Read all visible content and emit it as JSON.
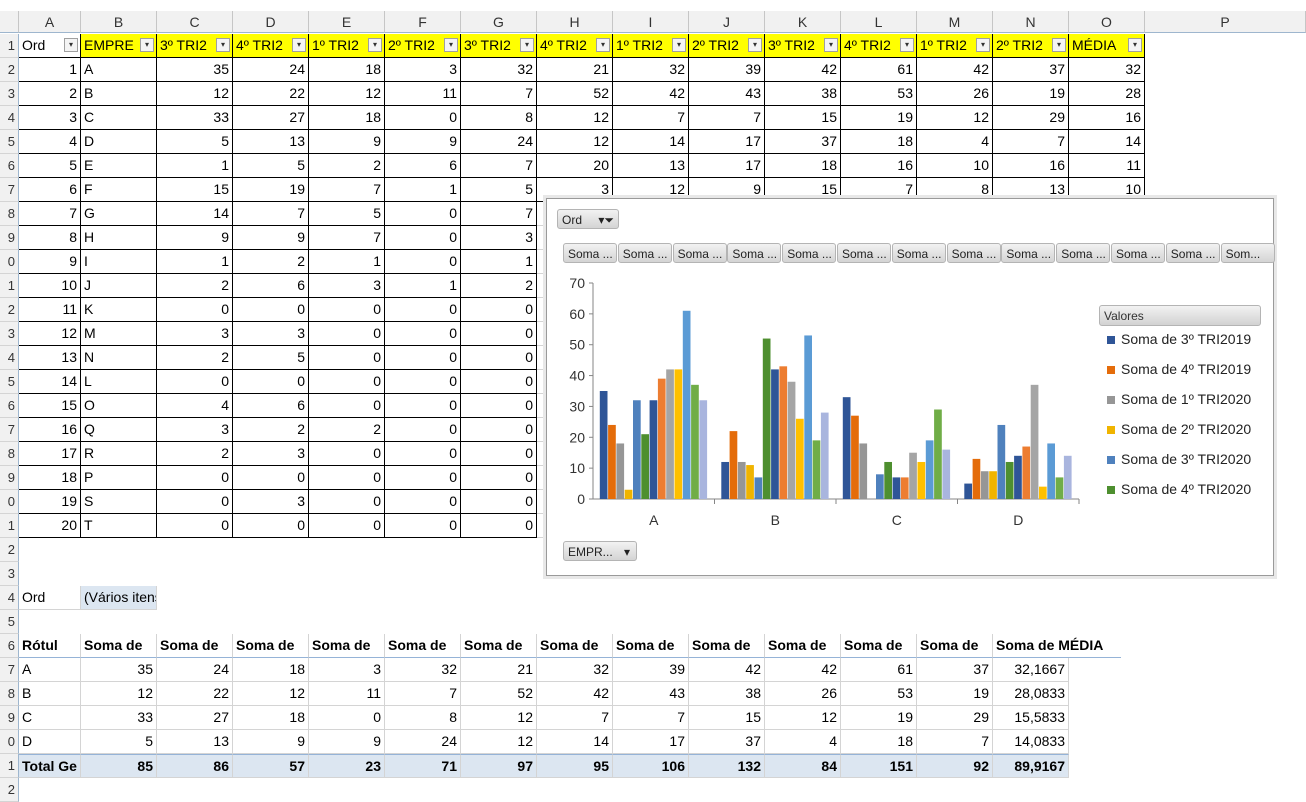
{
  "columns": [
    "A",
    "B",
    "C",
    "D",
    "E",
    "F",
    "G",
    "H",
    "I",
    "J",
    "K",
    "L",
    "M",
    "N",
    "O",
    "P"
  ],
  "row_numbers": [
    "1",
    "2",
    "3",
    "4",
    "5",
    "6",
    "7",
    "8",
    "9",
    "0",
    "1",
    "2",
    "3",
    "4",
    "5",
    "6",
    "7",
    "8",
    "9",
    "0",
    "1",
    "2",
    "3",
    "4",
    "5",
    "6",
    "7",
    "8",
    "9",
    "0",
    "1",
    "2"
  ],
  "table_headers": [
    "Ord",
    "EMPRE",
    "3º TRI2",
    "4º TRI2",
    "1º TRI2",
    "2º TRI2",
    "3º TRI2",
    "4º TRI2",
    "1º TRI2",
    "2º TRI2",
    "3º TRI2",
    "4º TRI2",
    "1º TRI2",
    "2º TRI2",
    "MÉDIA"
  ],
  "table_rows": [
    [
      "1",
      "A",
      "35",
      "24",
      "18",
      "3",
      "32",
      "21",
      "32",
      "39",
      "42",
      "61",
      "42",
      "37",
      "32"
    ],
    [
      "2",
      "B",
      "12",
      "22",
      "12",
      "11",
      "7",
      "52",
      "42",
      "43",
      "38",
      "53",
      "26",
      "19",
      "28"
    ],
    [
      "3",
      "C",
      "33",
      "27",
      "18",
      "0",
      "8",
      "12",
      "7",
      "7",
      "15",
      "19",
      "12",
      "29",
      "16"
    ],
    [
      "4",
      "D",
      "5",
      "13",
      "9",
      "9",
      "24",
      "12",
      "14",
      "17",
      "37",
      "18",
      "4",
      "7",
      "14"
    ],
    [
      "5",
      "E",
      "1",
      "5",
      "2",
      "6",
      "7",
      "20",
      "13",
      "17",
      "18",
      "16",
      "10",
      "16",
      "11"
    ],
    [
      "6",
      "F",
      "15",
      "19",
      "7",
      "1",
      "5",
      "3",
      "12",
      "9",
      "15",
      "7",
      "8",
      "13",
      "10"
    ],
    [
      "7",
      "G",
      "14",
      "7",
      "5",
      "0",
      "7",
      "",
      "",
      "",
      "",
      "",
      "",
      "",
      ""
    ],
    [
      "8",
      "H",
      "9",
      "9",
      "7",
      "0",
      "3",
      "",
      "",
      "",
      "",
      "",
      "",
      "",
      ""
    ],
    [
      "9",
      "I",
      "1",
      "2",
      "1",
      "0",
      "1",
      "",
      "",
      "",
      "",
      "",
      "",
      "",
      ""
    ],
    [
      "10",
      "J",
      "2",
      "6",
      "3",
      "1",
      "2",
      "",
      "",
      "",
      "",
      "",
      "",
      "",
      ""
    ],
    [
      "11",
      "K",
      "0",
      "0",
      "0",
      "0",
      "0",
      "",
      "",
      "",
      "",
      "",
      "",
      "",
      ""
    ],
    [
      "12",
      "M",
      "3",
      "3",
      "0",
      "0",
      "0",
      "",
      "",
      "",
      "",
      "",
      "",
      "",
      ""
    ],
    [
      "13",
      "N",
      "2",
      "5",
      "0",
      "0",
      "0",
      "",
      "",
      "",
      "",
      "",
      "",
      "",
      ""
    ],
    [
      "14",
      "L",
      "0",
      "0",
      "0",
      "0",
      "0",
      "",
      "",
      "",
      "",
      "",
      "",
      "",
      ""
    ],
    [
      "15",
      "O",
      "4",
      "6",
      "0",
      "0",
      "0",
      "",
      "",
      "",
      "",
      "",
      "",
      "",
      ""
    ],
    [
      "16",
      "Q",
      "3",
      "2",
      "2",
      "0",
      "0",
      "",
      "",
      "",
      "",
      "",
      "",
      "",
      ""
    ],
    [
      "17",
      "R",
      "2",
      "3",
      "0",
      "0",
      "0",
      "",
      "",
      "",
      "",
      "",
      "",
      "",
      ""
    ],
    [
      "18",
      "P",
      "0",
      "0",
      "0",
      "0",
      "0",
      "",
      "",
      "",
      "",
      "",
      "",
      "",
      ""
    ],
    [
      "19",
      "S",
      "0",
      "3",
      "0",
      "0",
      "0",
      "",
      "",
      "",
      "",
      "",
      "",
      "",
      ""
    ],
    [
      "20",
      "T",
      "0",
      "0",
      "0",
      "0",
      "0",
      "",
      "",
      "",
      "",
      "",
      "",
      "",
      ""
    ]
  ],
  "filter": {
    "label": "Ord",
    "value": "(Vários itens)"
  },
  "pivot_headers": [
    "Rótul",
    "Soma de",
    "Soma de",
    "Soma de",
    "Soma de",
    "Soma de",
    "Soma de",
    "Soma de",
    "Soma de",
    "Soma de",
    "Soma de",
    "Soma de",
    "Soma de",
    "Soma de MÉDIA"
  ],
  "pivot_rows": [
    [
      "A",
      "35",
      "24",
      "18",
      "3",
      "32",
      "21",
      "32",
      "39",
      "42",
      "42",
      "61",
      "37",
      "32,1667"
    ],
    [
      "B",
      "12",
      "22",
      "12",
      "11",
      "7",
      "52",
      "42",
      "43",
      "38",
      "26",
      "53",
      "19",
      "28,0833"
    ],
    [
      "C",
      "33",
      "27",
      "18",
      "0",
      "8",
      "12",
      "7",
      "7",
      "15",
      "12",
      "19",
      "29",
      "15,5833"
    ],
    [
      "D",
      "5",
      "13",
      "9",
      "9",
      "24",
      "12",
      "14",
      "17",
      "37",
      "4",
      "18",
      "7",
      "14,0833"
    ]
  ],
  "pivot_total": [
    "Total Ge",
    "85",
    "86",
    "57",
    "23",
    "71",
    "97",
    "95",
    "106",
    "132",
    "84",
    "151",
    "92",
    "89,9167"
  ],
  "pivot_chart": {
    "filter_button": "Ord",
    "value_buttons": [
      "Soma ...",
      "Soma ...",
      "Soma ...",
      "Soma ...",
      "Soma ...",
      "Soma ...",
      "Soma ...",
      "Soma ...",
      "Soma ...",
      "Soma ...",
      "Soma ...",
      "Soma ...",
      "Som..."
    ],
    "axis_button": "EMPR...",
    "legend_title": "Valores"
  },
  "chart_data": {
    "type": "bar",
    "categories": [
      "A",
      "B",
      "C",
      "D"
    ],
    "ylim": [
      0,
      70
    ],
    "yticks": [
      "0",
      "10",
      "20",
      "30",
      "40",
      "50",
      "60",
      "70"
    ],
    "grid": false,
    "legend_position": "right",
    "series": [
      {
        "name": "Soma de 3º TRI2019",
        "color": "#2f5597",
        "values": [
          35,
          12,
          33,
          5
        ]
      },
      {
        "name": "Soma de 4º TRI2019",
        "color": "#e46c0a",
        "values": [
          24,
          22,
          27,
          13
        ]
      },
      {
        "name": "Soma de 1º TRI2020",
        "color": "#969696",
        "values": [
          18,
          12,
          18,
          9
        ]
      },
      {
        "name": "Soma de 2º TRI2020",
        "color": "#f0b400",
        "values": [
          3,
          11,
          0,
          9
        ]
      },
      {
        "name": "Soma de 3º TRI2020",
        "color": "#4f81bd",
        "values": [
          32,
          7,
          8,
          24
        ]
      },
      {
        "name": "Soma de 4º TRI2020",
        "color": "#4e8f2f",
        "values": [
          21,
          52,
          12,
          12
        ]
      },
      {
        "color": "#2f5597",
        "values": [
          32,
          42,
          7,
          14
        ]
      },
      {
        "color": "#ed7d31",
        "values": [
          39,
          43,
          7,
          17
        ]
      },
      {
        "color": "#a5a5a5",
        "values": [
          42,
          38,
          15,
          37
        ]
      },
      {
        "color": "#ffc000",
        "values": [
          42,
          26,
          12,
          4
        ]
      },
      {
        "color": "#5b9bd5",
        "values": [
          61,
          53,
          19,
          18
        ]
      },
      {
        "color": "#70ad47",
        "values": [
          37,
          19,
          29,
          7
        ]
      },
      {
        "color": "#a9b5de",
        "values": [
          32,
          28,
          16,
          14
        ]
      }
    ]
  }
}
